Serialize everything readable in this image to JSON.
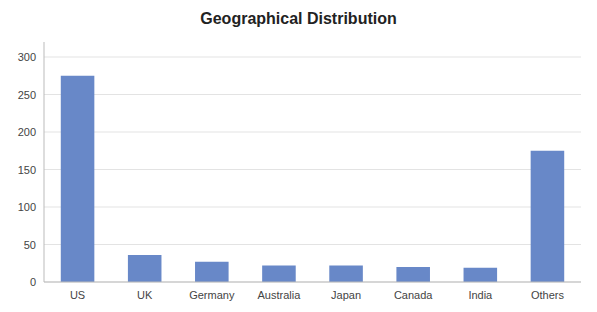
{
  "chart_data": {
    "type": "bar",
    "title": "Geographical Distribution",
    "categories": [
      "US",
      "UK",
      "Germany",
      "Australia",
      "Japan",
      "Canada",
      "India",
      "Others"
    ],
    "values": [
      275,
      36,
      27,
      22,
      22,
      20,
      19,
      175
    ],
    "color": "#6888C8",
    "ylim": [
      0,
      320
    ],
    "yticks": [
      0,
      50,
      100,
      150,
      200,
      250,
      300
    ],
    "grid": true
  }
}
